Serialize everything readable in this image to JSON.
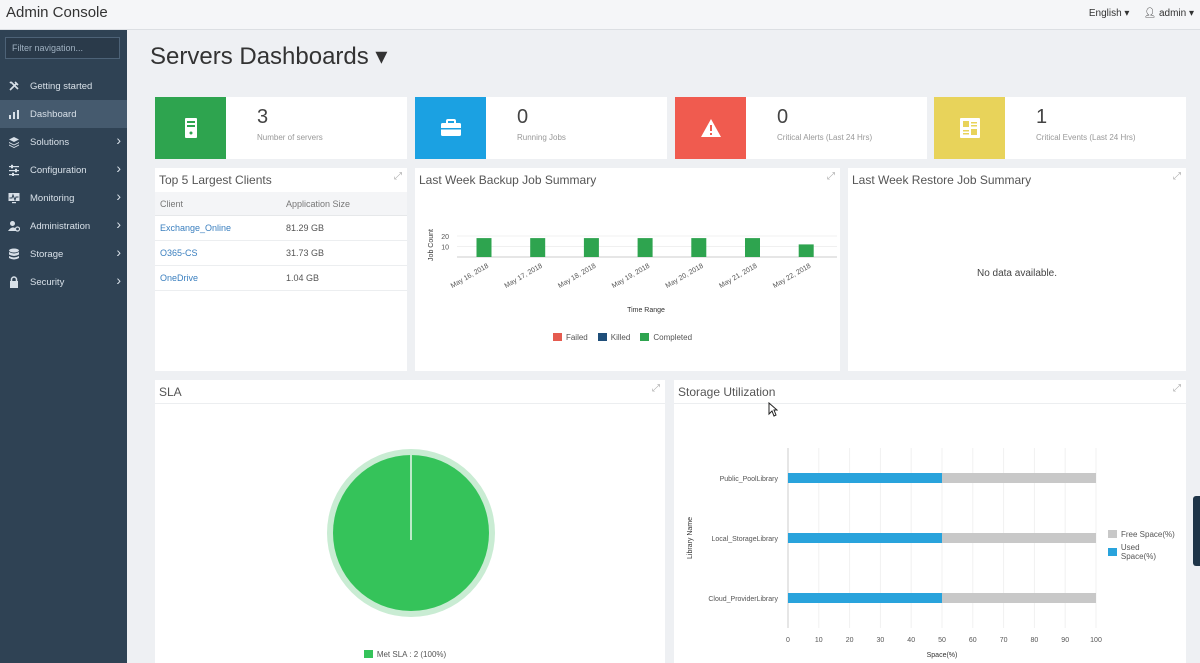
{
  "app": {
    "title": "Admin Console",
    "language": "English ▾",
    "user": "admin ▾"
  },
  "sidebar": {
    "filter_placeholder": "Filter navigation...",
    "items": [
      {
        "label": "Getting started",
        "icon": "tools-icon",
        "chevron": false,
        "active": false
      },
      {
        "label": "Dashboard",
        "icon": "dashboard-icon",
        "chevron": false,
        "active": true
      },
      {
        "label": "Solutions",
        "icon": "layers-icon",
        "chevron": true,
        "active": false
      },
      {
        "label": "Configuration",
        "icon": "sliders-icon",
        "chevron": true,
        "active": false
      },
      {
        "label": "Monitoring",
        "icon": "monitor-icon",
        "chevron": true,
        "active": false
      },
      {
        "label": "Administration",
        "icon": "user-gear-icon",
        "chevron": true,
        "active": false
      },
      {
        "label": "Storage",
        "icon": "database-icon",
        "chevron": true,
        "active": false
      },
      {
        "label": "Security",
        "icon": "lock-icon",
        "chevron": true,
        "active": false
      }
    ]
  },
  "page": {
    "title": "Servers Dashboards ▾"
  },
  "stats": [
    {
      "value": "3",
      "label": "Number of servers",
      "color": "#2ea44f",
      "icon": "server-icon"
    },
    {
      "value": "0",
      "label": "Running Jobs",
      "color": "#1ba1e2",
      "icon": "briefcase-icon"
    },
    {
      "value": "0",
      "label": "Critical Alerts (Last 24 Hrs)",
      "color": "#f05b4f",
      "icon": "warning-icon"
    },
    {
      "value": "1",
      "label": "Critical Events (Last 24 Hrs)",
      "color": "#e8d35a",
      "icon": "events-icon"
    }
  ],
  "clients": {
    "title": "Top 5 Largest Clients",
    "headers": [
      "Client",
      "Application Size"
    ],
    "rows": [
      {
        "client": "Exchange_Online",
        "size": "81.29 GB"
      },
      {
        "client": "O365-CS",
        "size": "31.73 GB"
      },
      {
        "client": "OneDrive",
        "size": "1.04 GB"
      }
    ]
  },
  "backup": {
    "title": "Last Week Backup Job Summary",
    "legend": [
      {
        "name": "Failed",
        "color": "#e55b4f"
      },
      {
        "name": "Killed",
        "color": "#1f4e79"
      },
      {
        "name": "Completed",
        "color": "#2ea44f"
      }
    ]
  },
  "restore": {
    "title": "Last Week Restore Job Summary",
    "nodata": "No data available."
  },
  "sla": {
    "title": "SLA",
    "legend": "Met SLA : 2 (100%)",
    "color": "#35c35a"
  },
  "storage": {
    "title": "Storage Utilization",
    "legend": [
      {
        "name": "Free Space(%)",
        "color": "#c8c8c8"
      },
      {
        "name": "Used Space(%)",
        "color": "#29a3dc"
      }
    ]
  },
  "chart_data": [
    {
      "type": "bar",
      "title": "Last Week Backup Job Summary",
      "xlabel": "Time Range",
      "ylabel": "Job Count",
      "categories": [
        "May 16, 2018",
        "May 17, 2018",
        "May 18, 2018",
        "May 19, 2018",
        "May 20, 2018",
        "May 21, 2018",
        "May 22, 2018"
      ],
      "series": [
        {
          "name": "Failed",
          "values": [
            0,
            0,
            0,
            0,
            0,
            0,
            0
          ]
        },
        {
          "name": "Killed",
          "values": [
            0,
            0,
            0,
            0,
            0,
            0,
            0
          ]
        },
        {
          "name": "Completed",
          "values": [
            18,
            18,
            18,
            18,
            18,
            18,
            12
          ]
        }
      ],
      "yticks": [
        10,
        20
      ],
      "ylim": [
        0,
        25
      ]
    },
    {
      "type": "pie",
      "title": "SLA",
      "labels": [
        "Met SLA"
      ],
      "values": [
        2
      ],
      "percent": [
        100
      ]
    },
    {
      "type": "bar",
      "orientation": "horizontal",
      "stacked": true,
      "title": "Storage Utilization",
      "xlabel": "Space(%)",
      "ylabel": "Library Name",
      "categories": [
        "Public_PoolLibrary",
        "Local_StorageLibrary",
        "Cloud_ProviderLibrary"
      ],
      "series": [
        {
          "name": "Used Space(%)",
          "values": [
            50,
            50,
            50
          ]
        },
        {
          "name": "Free Space(%)",
          "values": [
            50,
            50,
            50
          ]
        }
      ],
      "xticks": [
        "0",
        "10",
        "20",
        "30",
        "40",
        "50",
        "60",
        "70",
        "80",
        "90",
        "100"
      ],
      "xlim": [
        0,
        100
      ]
    }
  ]
}
